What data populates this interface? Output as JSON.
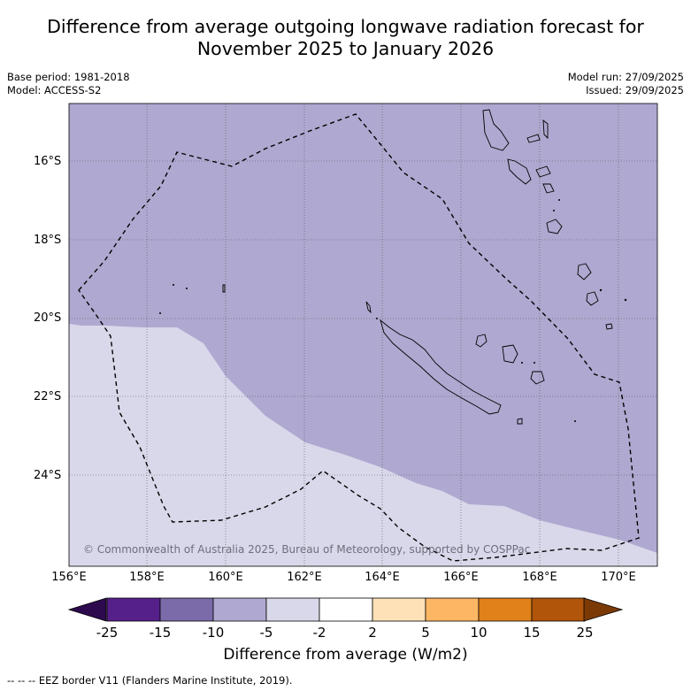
{
  "title_line1": "Difference from average outgoing longwave radiation forecast for",
  "title_line2": "November 2025 to January 2026",
  "base_period": "Base period: 1981-2018",
  "model": "Model: ACCESS-S2",
  "model_run": "Model run: 27/09/2025",
  "issued": "Issued: 29/09/2025",
  "lat_labels": [
    "16°S",
    "18°S",
    "20°S",
    "22°S",
    "24°S"
  ],
  "lon_labels": [
    "156°E",
    "158°E",
    "160°E",
    "162°E",
    "164°E",
    "166°E",
    "168°E",
    "170°E"
  ],
  "copyright": "© Commonwealth of Australia 2025, Bureau of Meteorology, supported by COSPPac",
  "colorbar": {
    "ticks": [
      "-25",
      "-15",
      "-10",
      "-5",
      "-2",
      "2",
      "5",
      "10",
      "15",
      "25"
    ],
    "colors": [
      "#56208a",
      "#7b6ba8",
      "#afa8d0",
      "#d8d8ea",
      "#ffffff",
      "#fee1b7",
      "#fdb663",
      "#e0811a",
      "#b0550a"
    ],
    "under_color": "#2d0a4e",
    "over_color": "#7b3a05",
    "label": "Difference from average (W/m2)"
  },
  "legend_footnote": "--  --  -- EEZ border V11 (Flanders Marine Institute, 2019).",
  "map_colors": {
    "region_minus10_minus5": "#afa8d0",
    "region_minus5_minus2": "#d8d8ea",
    "land_outline": "#000000",
    "eez_line": "#000000"
  }
}
